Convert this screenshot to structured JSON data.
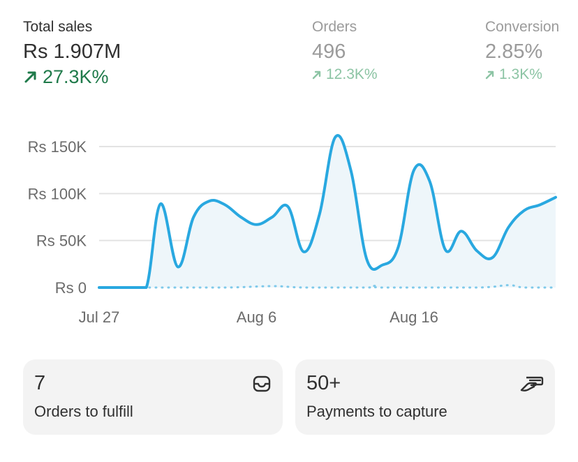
{
  "metrics": {
    "total_sales": {
      "label": "Total sales",
      "value": "Rs 1.907M",
      "delta": "27.3K%"
    },
    "orders": {
      "label": "Orders",
      "value": "496",
      "delta": "12.3K%"
    },
    "conversion": {
      "label": "Conversion",
      "value": "2.85%",
      "delta": "1.3K%"
    }
  },
  "colors": {
    "line": "#29a8e0",
    "positive_strong": "#1f7a4a",
    "positive_muted": "#8cc4a4"
  },
  "chart_data": {
    "type": "line",
    "ylim": [
      0,
      150000
    ],
    "y_ticks": [
      {
        "value": 0,
        "label": "Rs 0"
      },
      {
        "value": 50000,
        "label": "Rs 50K"
      },
      {
        "value": 100000,
        "label": "Rs 100K"
      },
      {
        "value": 150000,
        "label": "Rs 150K"
      }
    ],
    "x_ticks": [
      {
        "day": 0,
        "label": "Jul 27"
      },
      {
        "day": 10,
        "label": "Aug 6"
      },
      {
        "day": 20,
        "label": "Aug 16"
      }
    ],
    "x_range": [
      0,
      29
    ],
    "series": [
      {
        "style": "solid",
        "points": [
          [
            0,
            0
          ],
          [
            1,
            0
          ],
          [
            2,
            0
          ],
          [
            3,
            0
          ],
          [
            3.9,
            89000
          ],
          [
            5,
            22000
          ],
          [
            6,
            75000
          ],
          [
            7,
            92000
          ],
          [
            8,
            88000
          ],
          [
            9,
            75000
          ],
          [
            10,
            67000
          ],
          [
            11,
            75000
          ],
          [
            12,
            86000
          ],
          [
            13,
            38000
          ],
          [
            14,
            78000
          ],
          [
            15,
            160000
          ],
          [
            16,
            124000
          ],
          [
            17,
            30000
          ],
          [
            18,
            24000
          ],
          [
            19,
            43000
          ],
          [
            20,
            125000
          ],
          [
            21,
            113000
          ],
          [
            22,
            40000
          ],
          [
            23,
            60000
          ],
          [
            24,
            39000
          ],
          [
            25,
            32000
          ],
          [
            26,
            64000
          ],
          [
            27,
            82000
          ],
          [
            28,
            88000
          ],
          [
            29,
            96000
          ]
        ]
      },
      {
        "style": "dotted",
        "points": [
          [
            0,
            0
          ],
          [
            3,
            0
          ],
          [
            8,
            0
          ],
          [
            11,
            1500
          ],
          [
            13,
            0
          ],
          [
            17,
            0
          ],
          [
            17.5,
            1800
          ],
          [
            18,
            0
          ],
          [
            24,
            0
          ],
          [
            26,
            2500
          ],
          [
            27,
            0
          ],
          [
            29,
            0
          ]
        ]
      }
    ]
  },
  "cards": {
    "fulfill": {
      "count": "7",
      "label": "Orders to fulfill",
      "icon": "inbox-icon"
    },
    "capture": {
      "count": "50+",
      "label": "Payments to capture",
      "icon": "hand-payment-icon"
    }
  }
}
